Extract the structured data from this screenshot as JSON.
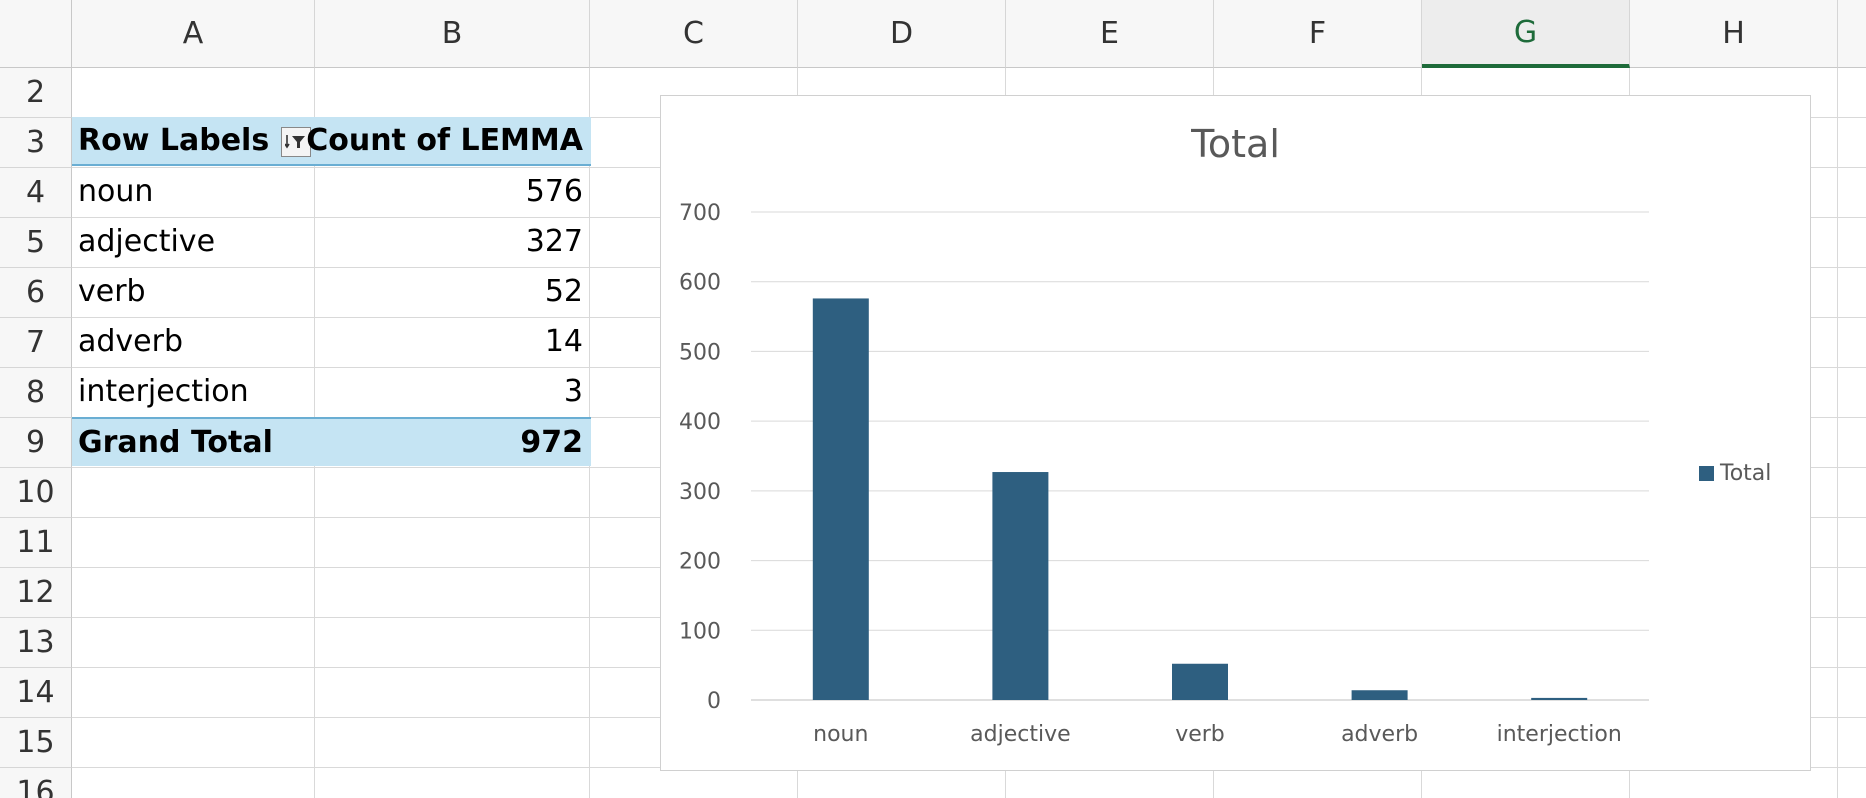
{
  "columns": [
    "A",
    "B",
    "C",
    "D",
    "E",
    "F",
    "G",
    "H"
  ],
  "selected_column": "G",
  "rows": [
    "2",
    "3",
    "4",
    "5",
    "6",
    "7",
    "8",
    "9",
    "10",
    "11",
    "12",
    "13",
    "14",
    "15",
    "16"
  ],
  "pivot": {
    "header": {
      "row_labels": "Row Labels",
      "value_label": "Count of LEMMA"
    },
    "items": [
      {
        "label": "noun",
        "value": "576"
      },
      {
        "label": "adjective",
        "value": "327"
      },
      {
        "label": "verb",
        "value": "52"
      },
      {
        "label": "adverb",
        "value": "14"
      },
      {
        "label": "interjection",
        "value": "3"
      }
    ],
    "total": {
      "label": "Grand Total",
      "value": "972"
    }
  },
  "colors": {
    "bar": "#2e5f80",
    "pivot_band": "#c5e4f3",
    "selected_column": "#1e6b3a"
  },
  "chart_data": {
    "type": "bar",
    "title": "Total",
    "categories": [
      "noun",
      "adjective",
      "verb",
      "adverb",
      "interjection"
    ],
    "series": [
      {
        "name": "Total",
        "values": [
          576,
          327,
          52,
          14,
          3
        ]
      }
    ],
    "ylim": [
      0,
      700
    ],
    "yticks": [
      0,
      100,
      200,
      300,
      400,
      500,
      600,
      700
    ],
    "grid": true,
    "legend": "right"
  }
}
